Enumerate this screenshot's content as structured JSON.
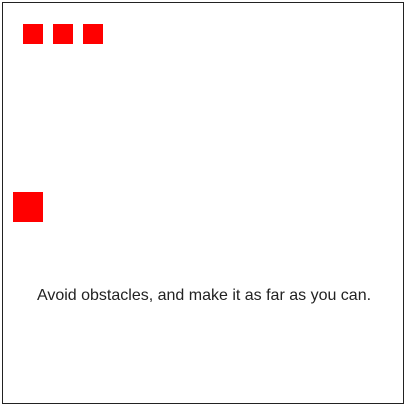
{
  "game": {
    "instructions": "Avoid obstacles, and make it as far as you can.",
    "lives_remaining": 3,
    "colors": {
      "piece": "#ff0000",
      "background": "#ffffff",
      "border": "#222222",
      "text": "#222222"
    }
  }
}
